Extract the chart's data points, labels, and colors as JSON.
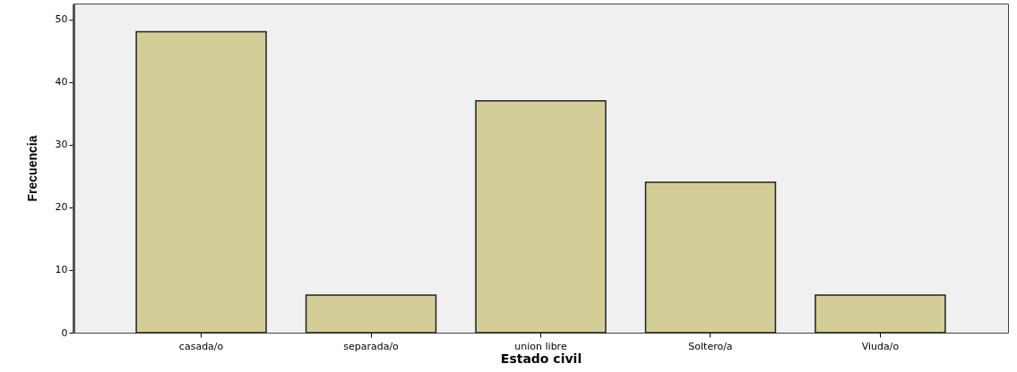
{
  "chart_data": {
    "type": "bar",
    "xlabel": "Estado civil",
    "ylabel": "Frecuencia",
    "categories": [
      "casada/o",
      "separada/o",
      "union libre",
      "Soltero/a",
      "Viuda/o"
    ],
    "values": [
      48,
      6,
      37,
      24,
      6
    ],
    "color": "#d3ce98",
    "ylim": [
      0,
      52.5
    ],
    "yticks": [
      0,
      10,
      20,
      30,
      40,
      50
    ],
    "grid": false
  }
}
